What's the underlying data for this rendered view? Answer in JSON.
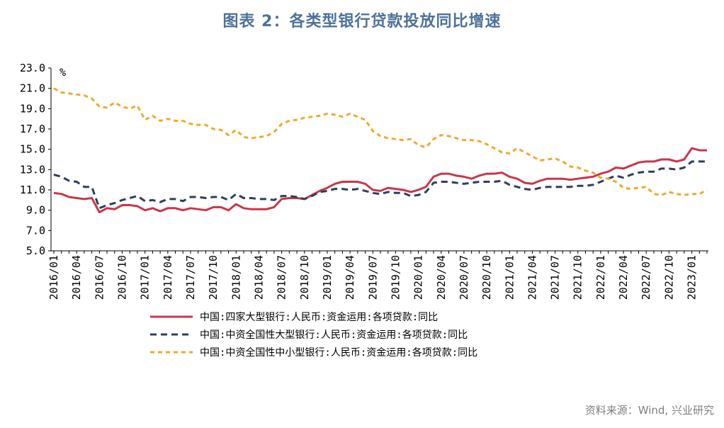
{
  "title": "图表 2：各类型银行贷款投放同比增速",
  "source": "资料来源：Wind, 兴业研究",
  "chart_data": {
    "type": "line",
    "unit": "%",
    "ylim": [
      5.0,
      23.0
    ],
    "yticks": [
      "23.0",
      "21.0",
      "19.0",
      "17.0",
      "15.0",
      "13.0",
      "11.0",
      "9.0",
      "7.0",
      "5.0"
    ],
    "x_tick_labels": [
      "2016/01",
      "2016/04",
      "2016/07",
      "2016/10",
      "2017/01",
      "2017/04",
      "2017/07",
      "2017/10",
      "2018/01",
      "2018/04",
      "2018/07",
      "2018/10",
      "2019/01",
      "2019/04",
      "2019/07",
      "2019/10",
      "2020/01",
      "2020/04",
      "2020/07",
      "2020/10",
      "2021/01",
      "2021/04",
      "2021/07",
      "2021/10",
      "2022/01",
      "2022/04",
      "2022/07",
      "2022/10",
      "2023/01"
    ],
    "x": [
      "2016/01",
      "2016/02",
      "2016/03",
      "2016/04",
      "2016/05",
      "2016/06",
      "2016/07",
      "2016/08",
      "2016/09",
      "2016/10",
      "2016/11",
      "2016/12",
      "2017/01",
      "2017/02",
      "2017/03",
      "2017/04",
      "2017/05",
      "2017/06",
      "2017/07",
      "2017/08",
      "2017/09",
      "2017/10",
      "2017/11",
      "2017/12",
      "2018/01",
      "2018/02",
      "2018/03",
      "2018/04",
      "2018/05",
      "2018/06",
      "2018/07",
      "2018/08",
      "2018/09",
      "2018/10",
      "2018/11",
      "2018/12",
      "2019/01",
      "2019/02",
      "2019/03",
      "2019/04",
      "2019/05",
      "2019/06",
      "2019/07",
      "2019/08",
      "2019/09",
      "2019/10",
      "2019/11",
      "2019/12",
      "2020/01",
      "2020/02",
      "2020/03",
      "2020/04",
      "2020/05",
      "2020/06",
      "2020/07",
      "2020/08",
      "2020/09",
      "2020/10",
      "2020/11",
      "2020/12",
      "2021/01",
      "2021/02",
      "2021/03",
      "2021/04",
      "2021/05",
      "2021/06",
      "2021/07",
      "2021/08",
      "2021/09",
      "2021/10",
      "2021/11",
      "2021/12",
      "2022/01",
      "2022/02",
      "2022/03",
      "2022/04",
      "2022/05",
      "2022/06",
      "2022/07",
      "2022/08",
      "2022/09",
      "2022/10",
      "2022/11",
      "2022/12",
      "2023/01",
      "2023/02",
      "2023/03"
    ],
    "series": [
      {
        "name": "中国:四家大型银行:人民币:资金运用:各项贷款:同比",
        "color": "#C8374A",
        "style": "solid",
        "values": [
          10.7,
          10.6,
          10.3,
          10.2,
          10.1,
          10.2,
          8.8,
          9.2,
          9.1,
          9.5,
          9.5,
          9.4,
          9.0,
          9.2,
          8.9,
          9.2,
          9.2,
          9.0,
          9.2,
          9.1,
          9.0,
          9.3,
          9.3,
          9.0,
          9.6,
          9.2,
          9.1,
          9.1,
          9.1,
          9.3,
          10.1,
          10.2,
          10.2,
          10.1,
          10.5,
          10.9,
          11.2,
          11.6,
          11.8,
          11.8,
          11.8,
          11.6,
          11.0,
          10.9,
          11.2,
          11.1,
          11.0,
          10.8,
          11.0,
          11.3,
          12.3,
          12.6,
          12.6,
          12.4,
          12.3,
          12.1,
          12.4,
          12.6,
          12.6,
          12.7,
          12.3,
          12.1,
          11.7,
          11.6,
          11.9,
          12.1,
          12.1,
          12.1,
          12.0,
          12.1,
          12.2,
          12.3,
          12.6,
          12.8,
          13.2,
          13.1,
          13.4,
          13.7,
          13.8,
          13.8,
          14.0,
          14.0,
          13.8,
          14.0,
          15.1,
          14.9,
          14.9
        ]
      },
      {
        "name": "中国:中资全国性大型银行:人民币:资金运用:各项贷款:同比",
        "color": "#2E3F5C",
        "style": "dash",
        "values": [
          12.5,
          12.3,
          11.9,
          11.8,
          11.3,
          11.3,
          9.2,
          9.5,
          9.7,
          10.0,
          10.2,
          10.4,
          9.9,
          10.0,
          9.8,
          10.1,
          10.1,
          9.9,
          10.3,
          10.3,
          10.2,
          10.3,
          10.3,
          10.0,
          10.6,
          10.2,
          10.2,
          10.1,
          10.1,
          10.0,
          10.4,
          10.4,
          10.3,
          10.1,
          10.4,
          10.8,
          10.9,
          11.1,
          11.1,
          11.0,
          11.1,
          10.9,
          10.7,
          10.6,
          10.8,
          10.7,
          10.7,
          10.4,
          10.5,
          10.8,
          11.7,
          11.8,
          11.8,
          11.7,
          11.6,
          11.7,
          11.8,
          11.8,
          11.8,
          11.9,
          11.5,
          11.3,
          11.1,
          11.0,
          11.2,
          11.3,
          11.3,
          11.3,
          11.3,
          11.4,
          11.4,
          11.5,
          11.8,
          12.1,
          12.4,
          12.2,
          12.5,
          12.7,
          12.8,
          12.8,
          13.1,
          13.1,
          13.0,
          13.2,
          13.8,
          13.8,
          13.8
        ]
      },
      {
        "name": "中国:中资全国性中小型银行:人民币:资金运用:各项贷款:同比",
        "color": "#F0A830",
        "style": "dash",
        "values": [
          21.0,
          20.6,
          20.5,
          20.4,
          20.3,
          20.0,
          19.2,
          19.1,
          19.6,
          19.2,
          19.0,
          19.3,
          17.9,
          18.3,
          17.8,
          18.0,
          17.8,
          17.8,
          17.5,
          17.4,
          17.4,
          17.0,
          16.9,
          16.4,
          16.9,
          16.2,
          16.1,
          16.2,
          16.3,
          16.7,
          17.5,
          17.8,
          17.9,
          18.1,
          18.2,
          18.3,
          18.5,
          18.4,
          18.2,
          18.5,
          18.2,
          17.9,
          16.8,
          16.3,
          16.1,
          16.0,
          15.9,
          16.0,
          15.4,
          15.2,
          16.0,
          16.4,
          16.3,
          16.1,
          15.9,
          15.9,
          15.8,
          15.5,
          15.1,
          14.7,
          14.6,
          15.1,
          14.7,
          14.3,
          13.9,
          14.0,
          14.1,
          13.8,
          13.3,
          13.2,
          12.9,
          12.7,
          12.2,
          12.1,
          11.8,
          11.2,
          11.1,
          11.2,
          11.3,
          10.6,
          10.5,
          10.8,
          10.6,
          10.5,
          10.6,
          10.6,
          11.0
        ]
      }
    ]
  }
}
